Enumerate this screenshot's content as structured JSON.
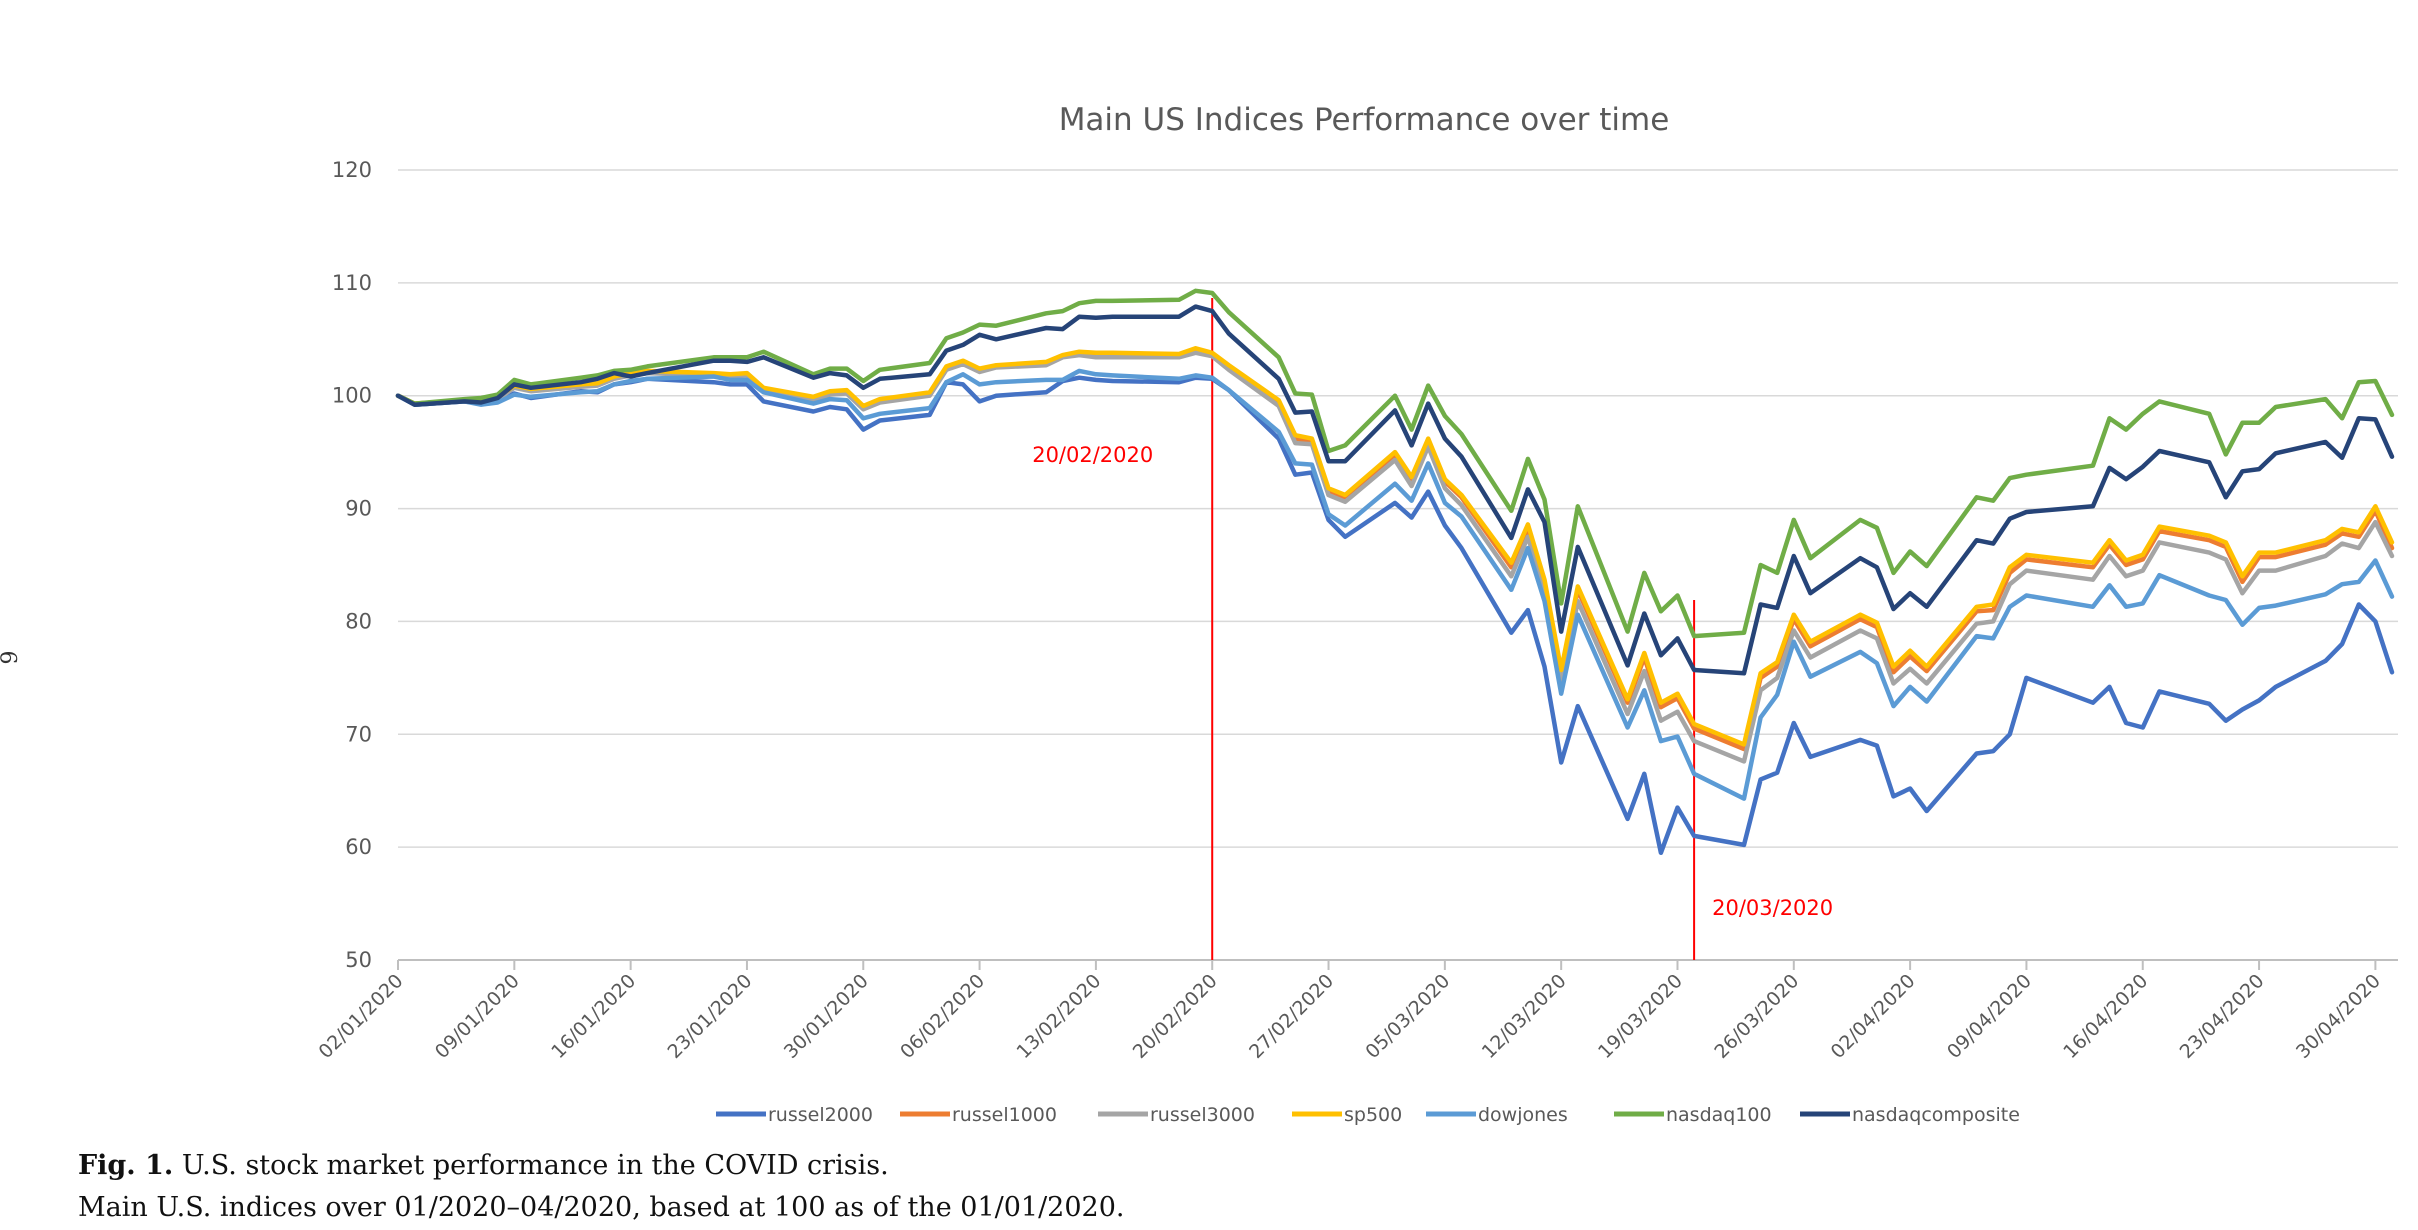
{
  "margin_mark": "6",
  "caption": {
    "label": "Fig. 1.",
    "title": " U.S. stock market performance in the COVID crisis.",
    "line2": "Main U.S. indices over 01/2020–04/2020, based at 100 as of the 01/01/2020."
  },
  "chart_data": {
    "type": "line",
    "title": "Main US Indices Performance over time",
    "xlabel": "",
    "ylabel": "",
    "ylim": [
      50,
      120
    ],
    "yticks": [
      50,
      60,
      70,
      80,
      90,
      100,
      110,
      120
    ],
    "grid": true,
    "legend_position": "bottom",
    "x": [
      "02/01/2020",
      "03/01/2020",
      "06/01/2020",
      "07/01/2020",
      "08/01/2020",
      "09/01/2020",
      "10/01/2020",
      "13/01/2020",
      "14/01/2020",
      "15/01/2020",
      "16/01/2020",
      "17/01/2020",
      "21/01/2020",
      "22/01/2020",
      "23/01/2020",
      "24/01/2020",
      "27/01/2020",
      "28/01/2020",
      "29/01/2020",
      "30/01/2020",
      "31/01/2020",
      "03/02/2020",
      "04/02/2020",
      "05/02/2020",
      "06/02/2020",
      "07/02/2020",
      "10/02/2020",
      "11/02/2020",
      "12/02/2020",
      "13/02/2020",
      "14/02/2020",
      "18/02/2020",
      "19/02/2020",
      "20/02/2020",
      "21/02/2020",
      "24/02/2020",
      "25/02/2020",
      "26/02/2020",
      "27/02/2020",
      "28/02/2020",
      "02/03/2020",
      "03/03/2020",
      "04/03/2020",
      "05/03/2020",
      "06/03/2020",
      "09/03/2020",
      "10/03/2020",
      "11/03/2020",
      "12/03/2020",
      "13/03/2020",
      "16/03/2020",
      "17/03/2020",
      "18/03/2020",
      "19/03/2020",
      "20/03/2020",
      "23/03/2020",
      "24/03/2020",
      "25/03/2020",
      "26/03/2020",
      "27/03/2020",
      "30/03/2020",
      "31/03/2020",
      "01/04/2020",
      "02/04/2020",
      "03/04/2020",
      "06/04/2020",
      "07/04/2020",
      "08/04/2020",
      "09/04/2020",
      "13/04/2020",
      "14/04/2020",
      "15/04/2020",
      "16/04/2020",
      "17/04/2020",
      "20/04/2020",
      "21/04/2020",
      "22/04/2020",
      "23/04/2020",
      "24/04/2020",
      "27/04/2020",
      "28/04/2020",
      "29/04/2020",
      "30/04/2020",
      "01/05/2020"
    ],
    "xticks": [
      "02/01/2020",
      "09/01/2020",
      "16/01/2020",
      "23/01/2020",
      "30/01/2020",
      "06/02/2020",
      "13/02/2020",
      "20/02/2020",
      "27/02/2020",
      "05/03/2020",
      "12/03/2020",
      "19/03/2020",
      "26/03/2020",
      "02/04/2020",
      "09/04/2020",
      "16/04/2020",
      "23/04/2020",
      "30/04/2020"
    ],
    "annotations": [
      {
        "date": "20/02/2020",
        "label": "20/02/2020",
        "color": "#ff0000"
      },
      {
        "date": "20/03/2020",
        "label": "20/03/2020",
        "color": "#ff0000"
      }
    ],
    "series": [
      {
        "name": "russel2000",
        "color": "#4472c4",
        "values": [
          100,
          99.2,
          99.5,
          99.3,
          99.6,
          100.2,
          99.8,
          100.4,
          100.3,
          101,
          101.2,
          101.5,
          101.2,
          101,
          101,
          99.5,
          98.6,
          99,
          98.8,
          97,
          97.8,
          98.3,
          101.2,
          101,
          99.5,
          100,
          100.3,
          101.3,
          101.6,
          101.4,
          101.3,
          101.2,
          101.6,
          101.5,
          100.5,
          96.2,
          93,
          93.2,
          89,
          87.5,
          90.5,
          89.2,
          91.5,
          88.5,
          86.5,
          79,
          81,
          76,
          67.5,
          72.5,
          62.5,
          66.5,
          59.5,
          63.5,
          61,
          60.2,
          66,
          66.6,
          71,
          68,
          69.5,
          69,
          64.5,
          65.2,
          63.2,
          68.3,
          68.5,
          70,
          75,
          72.8,
          74.2,
          71,
          70.6,
          73.8,
          72.7,
          71.2,
          72.2,
          73,
          74.2,
          76.5,
          78,
          81.5,
          80,
          75.5
        ]
      },
      {
        "name": "russel1000",
        "color": "#ed7d31",
        "values": [
          100,
          99.3,
          99.6,
          99.5,
          99.8,
          100.8,
          100.5,
          100.9,
          101,
          101.6,
          101.9,
          102.1,
          101.9,
          101.8,
          101.9,
          100.5,
          99.8,
          100.3,
          100.4,
          99,
          99.6,
          100.2,
          102.4,
          103,
          102.3,
          102.6,
          102.9,
          103.5,
          103.8,
          103.6,
          103.6,
          103.6,
          104,
          103.7,
          102.5,
          99.4,
          96.2,
          96,
          91.6,
          91,
          94.8,
          92.5,
          96,
          92.4,
          91,
          84.8,
          88.3,
          83.4,
          75.4,
          82.8,
          72.8,
          76.8,
          72.4,
          73.2,
          70.5,
          68.7,
          75,
          76,
          80.2,
          77.8,
          80.2,
          79.5,
          75.5,
          76.9,
          75.6,
          80.9,
          81,
          84.3,
          85.5,
          84.8,
          86.8,
          85,
          85.5,
          88,
          87.2,
          86.6,
          83.5,
          85.7,
          85.7,
          86.8,
          87.8,
          87.5,
          89.8,
          86.5
        ]
      },
      {
        "name": "russel3000",
        "color": "#a5a5a5",
        "values": [
          100,
          99.3,
          99.6,
          99.4,
          99.7,
          100.7,
          100.4,
          100.8,
          100.9,
          101.5,
          101.8,
          102,
          101.8,
          101.7,
          101.8,
          100.4,
          99.6,
          100.1,
          100.2,
          98.8,
          99.4,
          100,
          102.3,
          102.8,
          102.1,
          102.5,
          102.7,
          103.4,
          103.6,
          103.4,
          103.4,
          103.4,
          103.8,
          103.5,
          102.3,
          99.1,
          95.8,
          95.7,
          91.2,
          90.6,
          94.3,
          92,
          95.5,
          91.8,
          90.3,
          84,
          87.5,
          82.5,
          74.4,
          81.8,
          71.8,
          75.6,
          71.2,
          72,
          69.4,
          67.6,
          73.9,
          75,
          79.2,
          76.8,
          79.2,
          78.5,
          74.5,
          75.8,
          74.5,
          79.8,
          80,
          83.3,
          84.5,
          83.7,
          85.8,
          84,
          84.5,
          87,
          86.1,
          85.5,
          82.5,
          84.5,
          84.5,
          85.8,
          86.9,
          86.5,
          88.8,
          85.8
        ]
      },
      {
        "name": "sp500",
        "color": "#ffc000",
        "values": [
          100,
          99.3,
          99.6,
          99.6,
          99.9,
          100.9,
          100.6,
          101,
          101.1,
          101.7,
          102,
          102.2,
          102,
          101.9,
          102,
          100.7,
          99.9,
          100.4,
          100.5,
          99.1,
          99.7,
          100.3,
          102.6,
          103.1,
          102.4,
          102.7,
          103,
          103.6,
          103.9,
          103.8,
          103.8,
          103.7,
          104.2,
          103.8,
          102.7,
          99.6,
          96.5,
          96.2,
          91.8,
          91.2,
          95,
          92.8,
          96.2,
          92.6,
          91.2,
          85.2,
          88.6,
          83.7,
          75.7,
          83.1,
          73.1,
          77.2,
          72.8,
          73.6,
          70.9,
          69.1,
          75.4,
          76.4,
          80.6,
          78.2,
          80.6,
          79.9,
          76,
          77.4,
          76,
          81.3,
          81.5,
          84.8,
          85.9,
          85.2,
          87.2,
          85.4,
          85.9,
          88.4,
          87.6,
          87,
          84,
          86.1,
          86.1,
          87.2,
          88.2,
          87.9,
          90.2,
          87
        ]
      },
      {
        "name": "dowjones",
        "color": "#5b9bd5",
        "values": [
          100,
          99.2,
          99.5,
          99.2,
          99.4,
          100.1,
          99.9,
          100.3,
          100.4,
          101,
          101.3,
          101.5,
          101.7,
          101.4,
          101.4,
          100.3,
          99.3,
          99.7,
          99.6,
          98,
          98.4,
          98.9,
          101.2,
          101.9,
          101,
          101.2,
          101.4,
          101.4,
          102.2,
          101.9,
          101.8,
          101.5,
          101.8,
          101.6,
          100.5,
          96.8,
          94,
          93.9,
          89.5,
          88.5,
          92.2,
          90.7,
          94,
          90.5,
          89.3,
          82.8,
          86.5,
          81.8,
          73.6,
          80.6,
          70.6,
          73.9,
          69.4,
          69.8,
          66.5,
          64.3,
          71.5,
          73.5,
          78.2,
          75.1,
          77.3,
          76.3,
          72.5,
          74.2,
          72.9,
          78.7,
          78.5,
          81.3,
          82.3,
          81.3,
          83.2,
          81.3,
          81.6,
          84.1,
          82.3,
          81.9,
          79.7,
          81.2,
          81.4,
          82.4,
          83.3,
          83.5,
          85.4,
          82.2
        ]
      },
      {
        "name": "nasdaq100",
        "color": "#70ad47",
        "values": [
          100,
          99.3,
          99.7,
          99.8,
          100.1,
          101.4,
          101,
          101.6,
          101.8,
          102.2,
          102.3,
          102.6,
          103.4,
          103.4,
          103.4,
          103.9,
          101.9,
          102.4,
          102.4,
          101.3,
          102.3,
          102.9,
          105.1,
          105.6,
          106.3,
          106.2,
          107.3,
          107.5,
          108.2,
          108.4,
          108.4,
          108.5,
          109.3,
          109.1,
          107.4,
          103.4,
          100.2,
          100.1,
          95.1,
          95.6,
          100,
          97,
          100.9,
          98.2,
          96.6,
          89.8,
          94.4,
          90.8,
          81.6,
          90.2,
          79.1,
          84.3,
          80.9,
          82.3,
          78.7,
          79,
          85,
          84.3,
          89,
          85.6,
          89,
          88.3,
          84.3,
          86.2,
          84.9,
          91,
          90.7,
          92.7,
          93,
          93.8,
          98,
          97,
          98.4,
          99.5,
          98.4,
          94.8,
          97.6,
          97.6,
          99,
          99.7,
          98,
          101.2,
          101.3,
          98.3
        ]
      },
      {
        "name": "nasdaqcomposite",
        "color": "#264478",
        "values": [
          100,
          99.2,
          99.5,
          99.4,
          99.8,
          101,
          100.7,
          101.2,
          101.5,
          102,
          101.7,
          102,
          103.1,
          103.1,
          103,
          103.4,
          101.6,
          102,
          101.8,
          100.7,
          101.5,
          101.9,
          104,
          104.5,
          105.4,
          105,
          106,
          105.9,
          107,
          106.9,
          107,
          107,
          107.9,
          107.5,
          105.5,
          101.5,
          98.5,
          98.6,
          94.2,
          94.2,
          98.7,
          95.6,
          99.3,
          96.2,
          94.6,
          87.4,
          91.7,
          88.8,
          79.1,
          86.6,
          76.1,
          80.7,
          77,
          78.5,
          75.7,
          75.4,
          81.5,
          81.2,
          85.8,
          82.5,
          85.6,
          84.8,
          81.1,
          82.5,
          81.3,
          87.2,
          86.9,
          89.1,
          89.7,
          90.2,
          93.6,
          92.6,
          93.7,
          95.1,
          94.1,
          91,
          93.3,
          93.5,
          94.9,
          95.9,
          94.5,
          98,
          97.9,
          94.6
        ]
      }
    ]
  }
}
